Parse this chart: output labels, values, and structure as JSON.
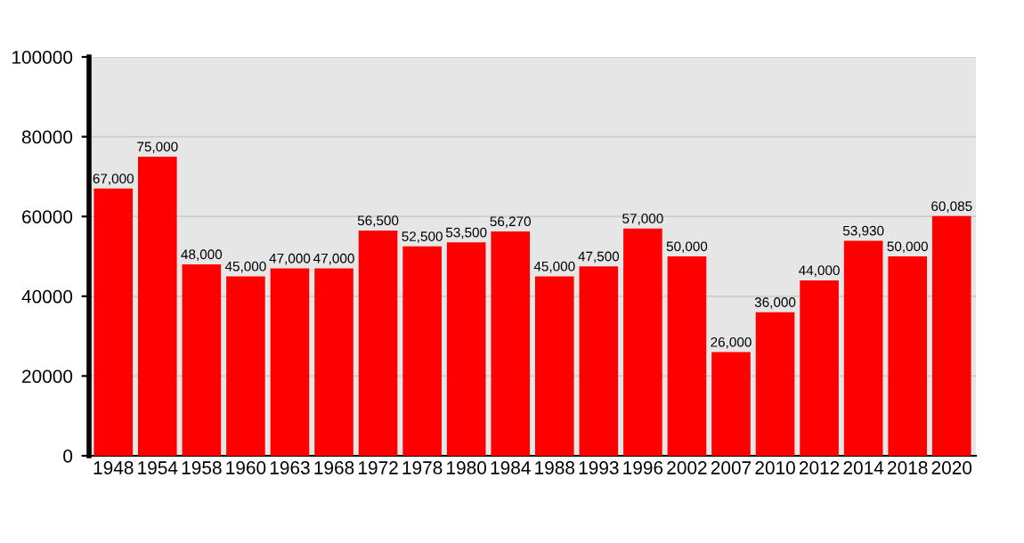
{
  "chart_data": {
    "type": "bar",
    "categories": [
      "1948",
      "1954",
      "1958",
      "1960",
      "1963",
      "1968",
      "1972",
      "1978",
      "1980",
      "1984",
      "1988",
      "1993",
      "1996",
      "2002",
      "2007",
      "2010",
      "2012",
      "2014",
      "2018",
      "2020"
    ],
    "values": [
      67000,
      75000,
      48000,
      45000,
      47000,
      47000,
      56500,
      52500,
      53500,
      56270,
      45000,
      47500,
      57000,
      50000,
      26000,
      36000,
      44000,
      53930,
      50000,
      60085
    ],
    "value_labels": [
      "67,000",
      "75,000",
      "48,000",
      "45,000",
      "47,000",
      "47,000",
      "56,500",
      "52,500",
      "53,500",
      "56,270",
      "45,000",
      "47,500",
      "57,000",
      "50,000",
      "26,000",
      "36,000",
      "44,000",
      "53,930",
      "50,000",
      "60,085"
    ],
    "color": "#ff0000",
    "ylim": [
      0,
      100000
    ],
    "yticks": [
      0,
      20000,
      40000,
      60000,
      80000,
      100000
    ],
    "grid": "y"
  }
}
